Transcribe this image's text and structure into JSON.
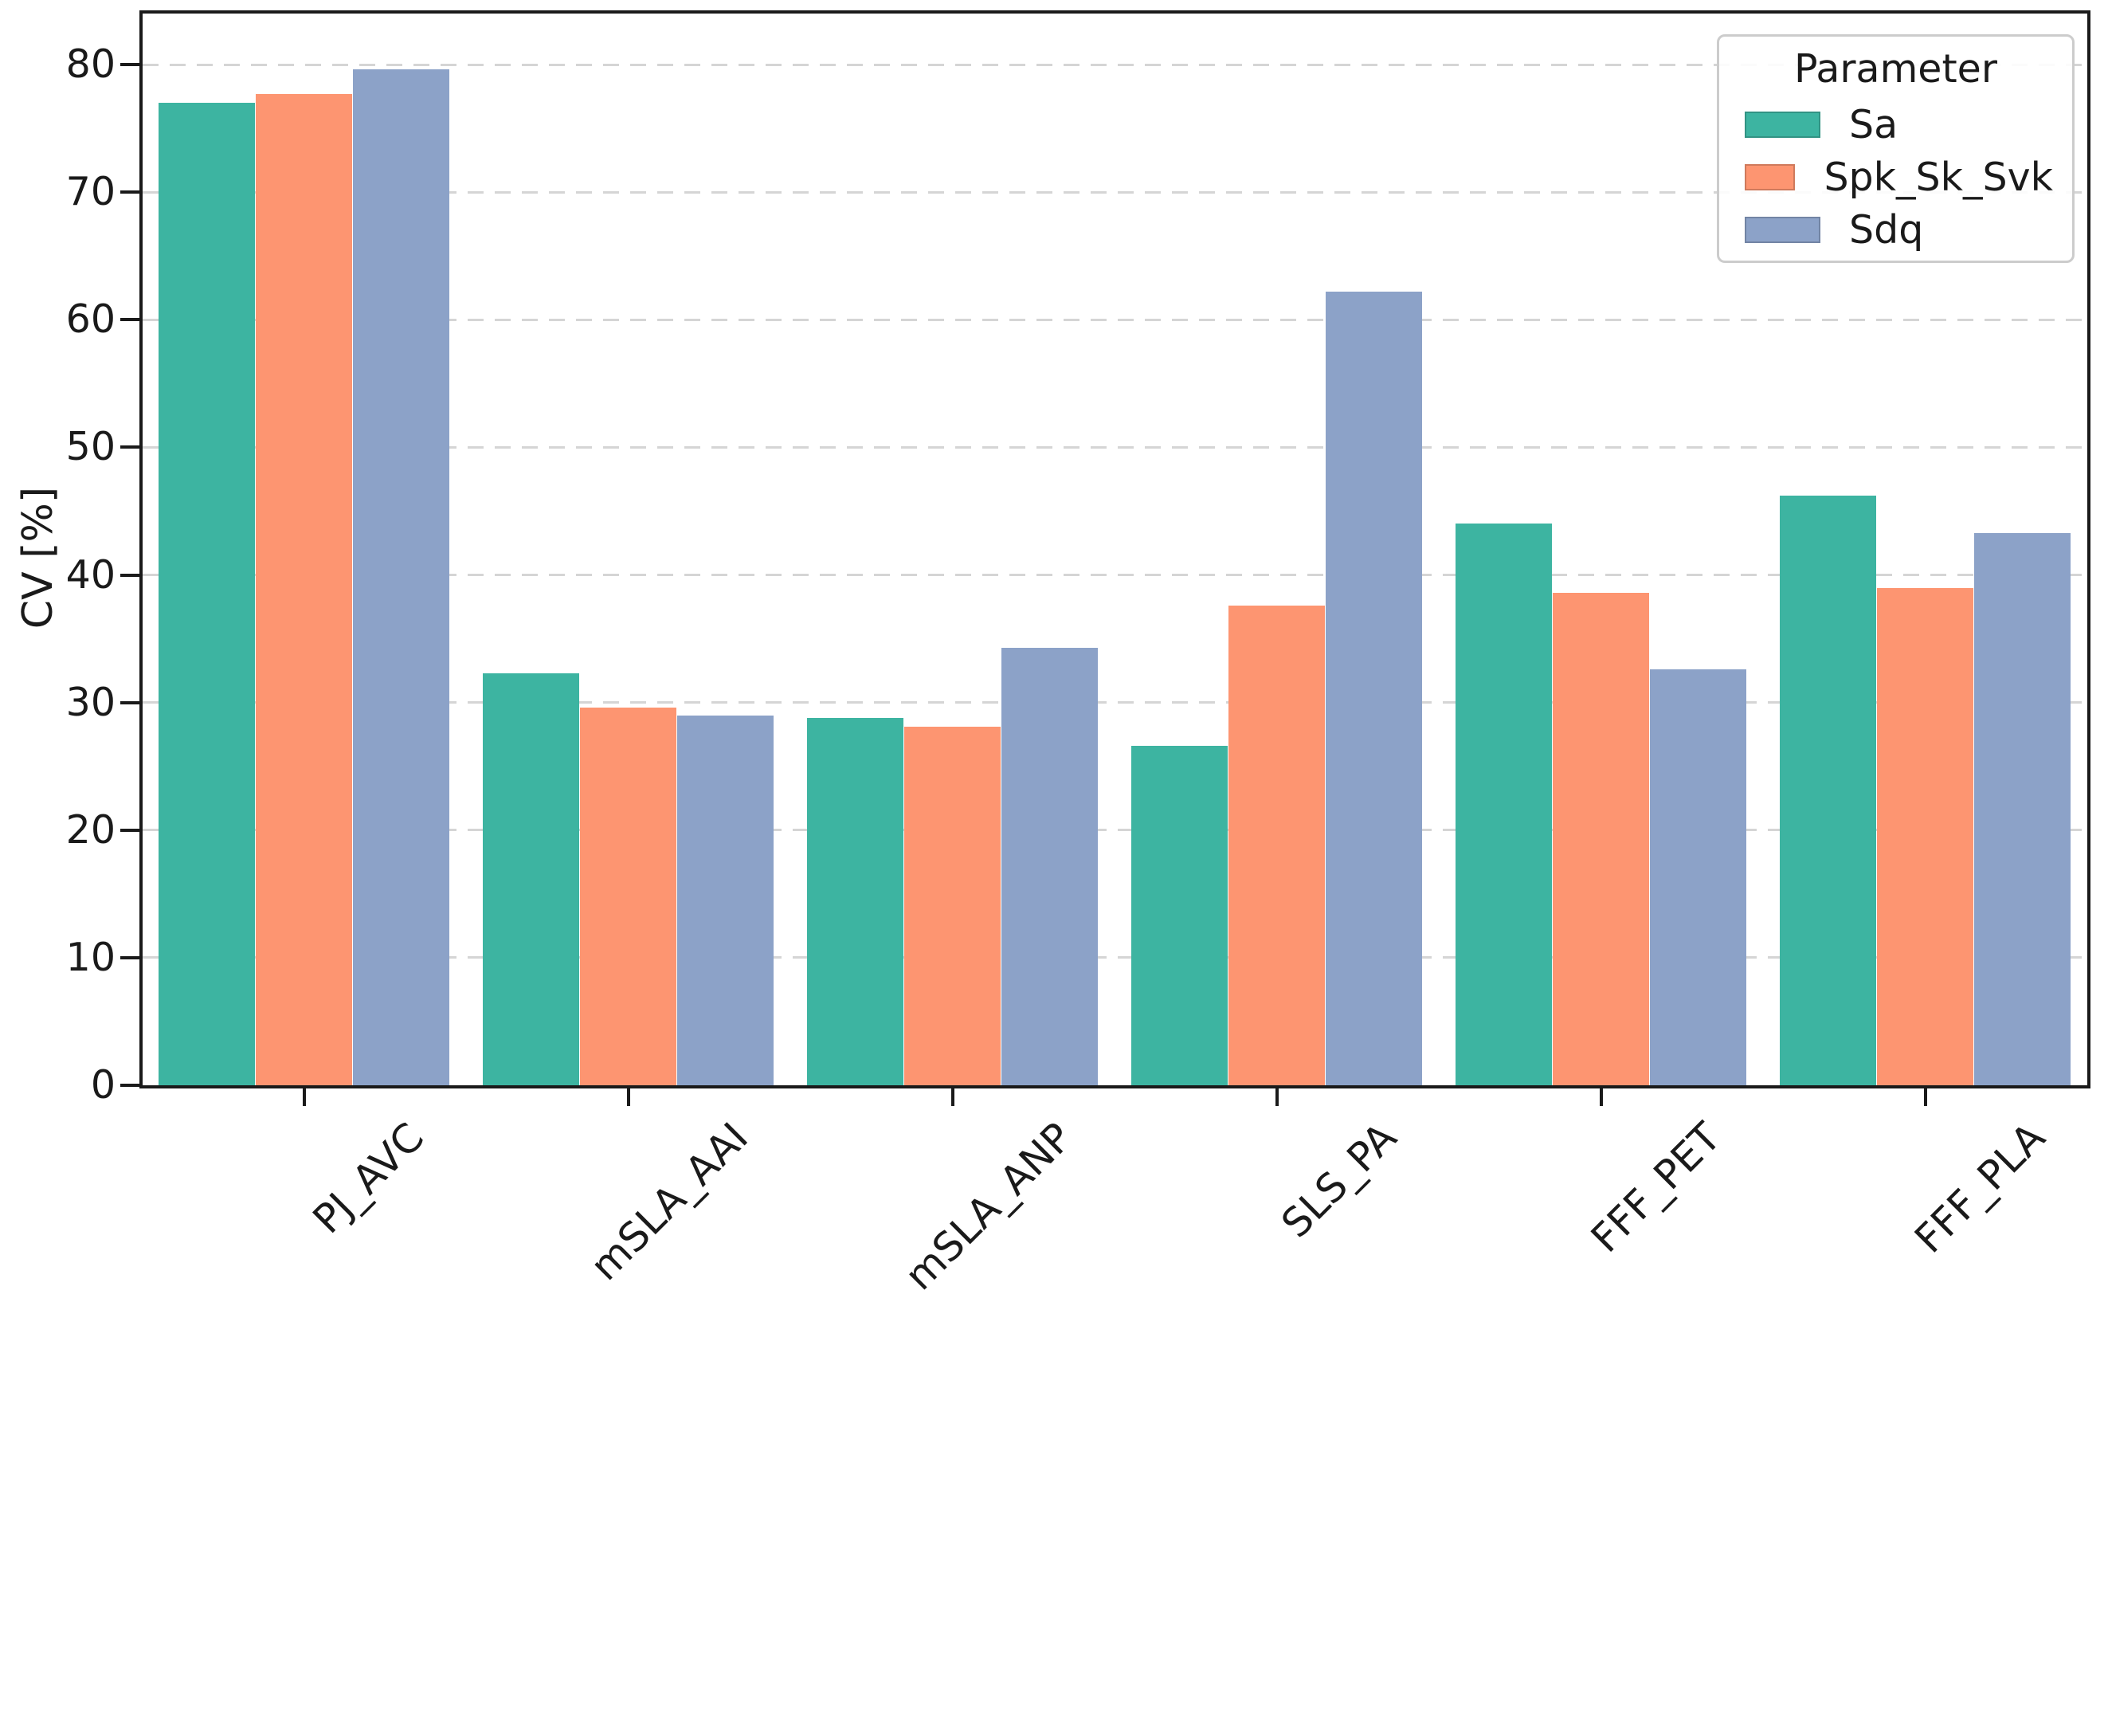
{
  "chart_data": {
    "type": "bar",
    "title": "",
    "xlabel": "",
    "ylabel": "CV [%]",
    "ylim": [
      0,
      84
    ],
    "yticks": [
      0,
      10,
      20,
      30,
      40,
      50,
      60,
      70,
      80
    ],
    "grid": "horizontal dashed lines, light gray",
    "legend": {
      "title": "Parameter",
      "position": "upper-right inside plot"
    },
    "categories": [
      "PJ_AVC",
      "mSLA_AAI",
      "mSLA_ANP",
      "SLS_PA",
      "FFF_PET",
      "FFF_PLA"
    ],
    "series": [
      {
        "name": "Sa",
        "color": "#3db4a1",
        "values": [
          77.0,
          32.3,
          28.8,
          26.6,
          44.0,
          46.2
        ]
      },
      {
        "name": "Spk_Sk_Svk",
        "color": "#fd9571",
        "values": [
          77.7,
          29.6,
          28.1,
          37.6,
          38.6,
          39.0
        ]
      },
      {
        "name": "Sdq",
        "color": "#8ca2c8",
        "values": [
          79.6,
          29.0,
          34.3,
          62.2,
          32.6,
          43.3
        ]
      }
    ],
    "colors": {
      "axis": "#1a1a1a",
      "grid": "#d5d5d5",
      "background": "#ffffff",
      "legend_border": "#cccccc"
    }
  }
}
